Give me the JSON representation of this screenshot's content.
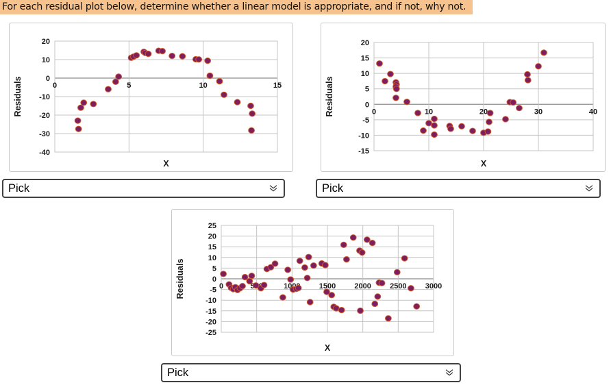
{
  "header": {
    "text": "For each residual plot below, determine whether a linear model is appropriate, and if not, why not.",
    "highlight_color": "#f6c28e"
  },
  "dropdowns": [
    {
      "label": "Pick"
    },
    {
      "label": "Pick"
    },
    {
      "label": "Pick"
    }
  ],
  "icons": {
    "dropdown_chevron": "chevron-double-down"
  },
  "colors": {
    "point_fill": "#7d1f5f",
    "point_stroke": "#d05a2e",
    "grid": "#c4c4c4",
    "zero_axis": "#8c8c8c",
    "plot_border": "#c4c4c4",
    "tick_text": "#1a1a1a",
    "card_border": "#c9c9c9"
  },
  "chart_data": [
    {
      "type": "scatter",
      "title": "",
      "xlabel": "X",
      "ylabel": "Residuals",
      "xlim": [
        0,
        15
      ],
      "ylim": [
        -40,
        20
      ],
      "xticks": [
        0,
        5,
        10,
        15
      ],
      "yticks": [
        20,
        10,
        0,
        -10,
        -20,
        -30,
        -40
      ],
      "grid": true,
      "legend": false,
      "points": [
        [
          1.55,
          -23
        ],
        [
          1.6,
          -27.5
        ],
        [
          1.75,
          -16
        ],
        [
          1.95,
          -13.3
        ],
        [
          2.6,
          -14
        ],
        [
          3.6,
          -6
        ],
        [
          4.1,
          -2
        ],
        [
          4.3,
          0.8
        ],
        [
          5.15,
          11
        ],
        [
          5.3,
          11.6
        ],
        [
          5.5,
          12.3
        ],
        [
          6.0,
          14.2
        ],
        [
          6.1,
          13.6
        ],
        [
          6.3,
          13.1
        ],
        [
          7.0,
          14.8
        ],
        [
          7.25,
          14.6
        ],
        [
          7.9,
          12
        ],
        [
          8.6,
          11.8
        ],
        [
          9.5,
          10.2
        ],
        [
          9.7,
          10.1
        ],
        [
          10.3,
          9.4
        ],
        [
          10.45,
          1.3
        ],
        [
          11.1,
          -1.7
        ],
        [
          11.4,
          -9
        ],
        [
          12.3,
          -13
        ],
        [
          13.2,
          -15
        ],
        [
          13.3,
          -19.2
        ],
        [
          13.25,
          -28.3
        ]
      ]
    },
    {
      "type": "scatter",
      "title": "",
      "xlabel": "X",
      "ylabel": "Residuals",
      "xlim": [
        0,
        40
      ],
      "ylim": [
        -15,
        20
      ],
      "xticks": [
        0,
        10,
        20,
        30,
        40
      ],
      "yticks": [
        20,
        15,
        10,
        5,
        0,
        -5,
        -10,
        -15
      ],
      "grid": true,
      "legend": false,
      "points": [
        [
          1,
          13.2
        ],
        [
          2,
          7.5
        ],
        [
          3,
          9.8
        ],
        [
          4,
          7.1
        ],
        [
          4.1,
          6.4
        ],
        [
          4,
          5.7
        ],
        [
          4.1,
          5.0
        ],
        [
          4,
          2.1
        ],
        [
          6,
          0.8
        ],
        [
          8,
          -2.8
        ],
        [
          9,
          -8.5
        ],
        [
          10,
          -6.1
        ],
        [
          11,
          -4.7
        ],
        [
          11,
          -6.8
        ],
        [
          11,
          -9.8
        ],
        [
          13.8,
          -7.0
        ],
        [
          14,
          -7.9
        ],
        [
          16,
          -7.1
        ],
        [
          18,
          -8.6
        ],
        [
          20,
          -9.2
        ],
        [
          20.8,
          -8.8
        ],
        [
          21,
          -5.7
        ],
        [
          21.2,
          -2.8
        ],
        [
          24,
          -4.8
        ],
        [
          24.8,
          0.7
        ],
        [
          25.4,
          0.6
        ],
        [
          26.5,
          -1.2
        ],
        [
          28,
          9.7
        ],
        [
          28.1,
          7.8
        ],
        [
          30,
          12.3
        ],
        [
          31,
          16.7
        ]
      ]
    },
    {
      "type": "scatter",
      "title": "",
      "xlabel": "X",
      "ylabel": "Residuals",
      "xlim": [
        0,
        3000
      ],
      "ylim": [
        -25,
        25
      ],
      "xticks": [
        0,
        500,
        1000,
        1500,
        2000,
        2500,
        3000
      ],
      "yticks": [
        25,
        20,
        15,
        10,
        5,
        0,
        -5,
        -10,
        -15,
        -20,
        -25
      ],
      "grid": true,
      "legend": false,
      "points": [
        [
          30,
          2.3
        ],
        [
          110,
          -2.6
        ],
        [
          140,
          -4.2
        ],
        [
          170,
          -4.8
        ],
        [
          200,
          -3.9
        ],
        [
          230,
          -5.2
        ],
        [
          265,
          -4.4
        ],
        [
          300,
          -3.4
        ],
        [
          335,
          0.8
        ],
        [
          400,
          -1.1
        ],
        [
          430,
          1.4
        ],
        [
          490,
          -3.1
        ],
        [
          560,
          -4.4
        ],
        [
          605,
          -2.9
        ],
        [
          645,
          4.6
        ],
        [
          700,
          5.4
        ],
        [
          760,
          7.1
        ],
        [
          870,
          -8.7
        ],
        [
          940,
          4.2
        ],
        [
          980,
          -0.3
        ],
        [
          1015,
          -5.0
        ],
        [
          1060,
          -4.7
        ],
        [
          1090,
          -4.3
        ],
        [
          1110,
          8.4
        ],
        [
          1180,
          5.3
        ],
        [
          1215,
          0.4
        ],
        [
          1235,
          10.2
        ],
        [
          1255,
          -10.9
        ],
        [
          1305,
          6.2
        ],
        [
          1420,
          7.2
        ],
        [
          1470,
          6.4
        ],
        [
          1490,
          -6.1
        ],
        [
          1560,
          -7.6
        ],
        [
          1590,
          -13.1
        ],
        [
          1625,
          -13.8
        ],
        [
          1700,
          -14.6
        ],
        [
          1730,
          15.9
        ],
        [
          1770,
          9.1
        ],
        [
          1865,
          19.3
        ],
        [
          1955,
          13.2
        ],
        [
          1990,
          12.3
        ],
        [
          1965,
          -14.9
        ],
        [
          2060,
          18.3
        ],
        [
          2135,
          16.8
        ],
        [
          2170,
          -11.7
        ],
        [
          2210,
          -8.3
        ],
        [
          2230,
          -1.8
        ],
        [
          2270,
          -2.0
        ],
        [
          2360,
          -18.5
        ],
        [
          2485,
          3.1
        ],
        [
          2590,
          9.6
        ],
        [
          2680,
          -4.4
        ],
        [
          2760,
          -12.9
        ]
      ]
    }
  ]
}
